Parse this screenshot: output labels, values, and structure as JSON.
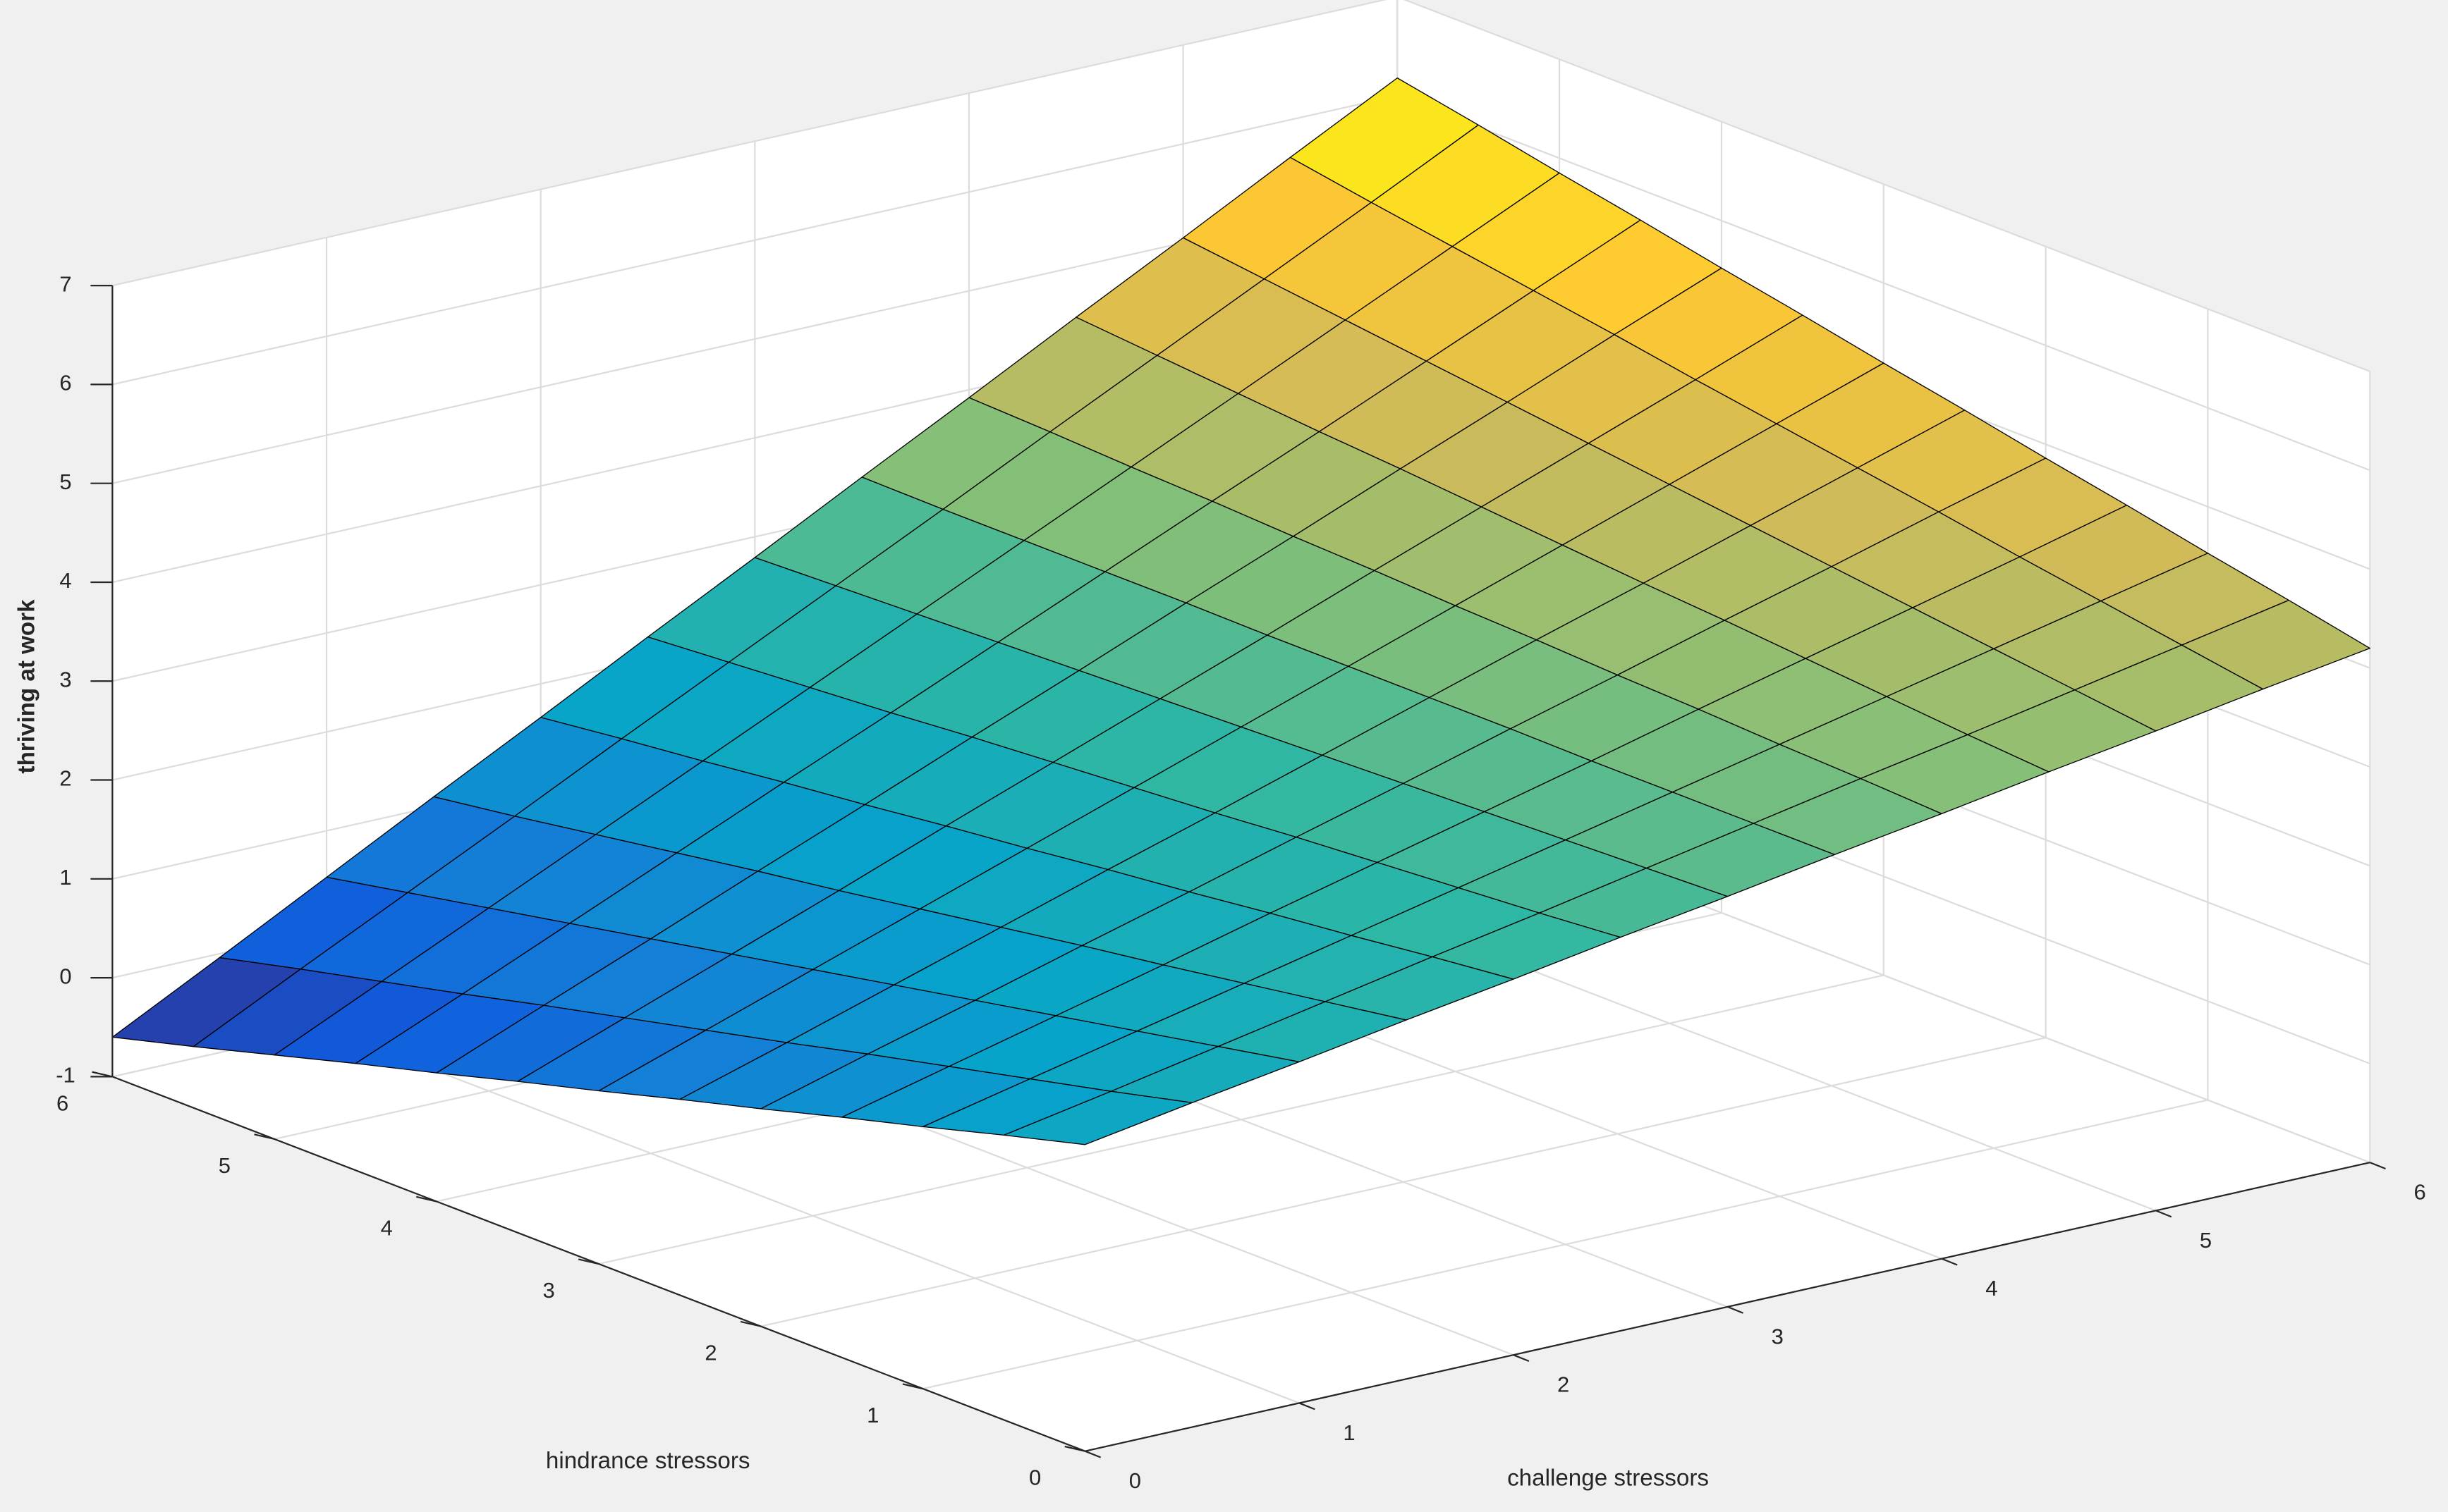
{
  "chart_data": {
    "type": "surface",
    "zlabel": "thriving at work",
    "xlabel": "challenge stressors",
    "ylabel": "hindrance stressors",
    "x": [
      0,
      0.5,
      1,
      1.5,
      2,
      2.5,
      3,
      3.5,
      4,
      4.5,
      5,
      5.5,
      6
    ],
    "y": [
      0,
      0.5,
      1,
      1.5,
      2,
      2.5,
      3,
      3.5,
      4,
      4.5,
      5,
      5.5,
      6
    ],
    "z": [
      [
        2.1,
        2.28,
        2.45,
        2.63,
        2.8,
        2.98,
        3.15,
        3.33,
        3.5,
        3.68,
        3.85,
        4.03,
        4.2
      ],
      [
        1.88,
        2.08,
        2.29,
        2.5,
        2.71,
        2.91,
        3.12,
        3.33,
        3.54,
        3.74,
        3.95,
        4.16,
        4.37
      ],
      [
        1.65,
        1.89,
        2.13,
        2.37,
        2.61,
        2.85,
        3.09,
        3.33,
        3.57,
        3.81,
        4.05,
        4.29,
        4.53
      ],
      [
        1.43,
        1.7,
        1.97,
        2.24,
        2.52,
        2.79,
        3.06,
        3.33,
        3.61,
        3.88,
        4.15,
        4.42,
        4.7
      ],
      [
        1.2,
        1.51,
        1.81,
        2.12,
        2.42,
        2.73,
        3.03,
        3.34,
        3.64,
        3.95,
        4.25,
        4.56,
        4.86
      ],
      [
        0.98,
        1.31,
        1.65,
        1.99,
        2.33,
        2.66,
        3.0,
        3.34,
        3.68,
        4.01,
        4.35,
        4.69,
        5.03
      ],
      [
        0.75,
        1.12,
        1.49,
        1.86,
        2.23,
        2.6,
        2.97,
        3.34,
        3.71,
        4.08,
        4.45,
        4.82,
        5.19
      ],
      [
        0.53,
        0.93,
        1.33,
        1.73,
        2.14,
        2.54,
        2.94,
        3.34,
        3.75,
        4.15,
        4.55,
        4.95,
        5.36
      ],
      [
        0.3,
        0.74,
        1.17,
        1.61,
        2.04,
        2.48,
        2.91,
        3.35,
        3.78,
        4.22,
        4.65,
        5.09,
        5.52
      ],
      [
        0.08,
        0.54,
        1.01,
        1.48,
        1.95,
        2.41,
        2.88,
        3.35,
        3.82,
        4.28,
        4.75,
        5.22,
        5.69
      ],
      [
        -0.15,
        0.35,
        0.85,
        1.35,
        1.85,
        2.35,
        2.85,
        3.35,
        3.85,
        4.35,
        4.85,
        5.35,
        5.85
      ],
      [
        -0.38,
        0.16,
        0.69,
        1.22,
        1.76,
        2.29,
        2.82,
        3.35,
        3.89,
        4.42,
        4.95,
        5.48,
        6.02
      ],
      [
        -0.6,
        -0.04,
        0.53,
        1.1,
        1.66,
        2.23,
        2.79,
        3.36,
        3.92,
        4.49,
        5.05,
        5.62,
        6.18
      ]
    ],
    "xlim": [
      0,
      6
    ],
    "ylim": [
      0,
      6
    ],
    "zlim": [
      -1,
      7
    ],
    "xticks": [
      0,
      1,
      2,
      3,
      4,
      5,
      6
    ],
    "yticks": [
      0,
      1,
      2,
      3,
      4,
      5,
      6
    ],
    "zticks": [
      -1,
      0,
      1,
      2,
      3,
      4,
      5,
      6,
      7
    ],
    "grid": true,
    "colormap": [
      "#352a87",
      "#0f5cdd",
      "#1481d6",
      "#06a4ca",
      "#2eb7a4",
      "#87bf77",
      "#d1bb59",
      "#fec832",
      "#f9fb0e"
    ],
    "edgecolor": "#000000"
  }
}
